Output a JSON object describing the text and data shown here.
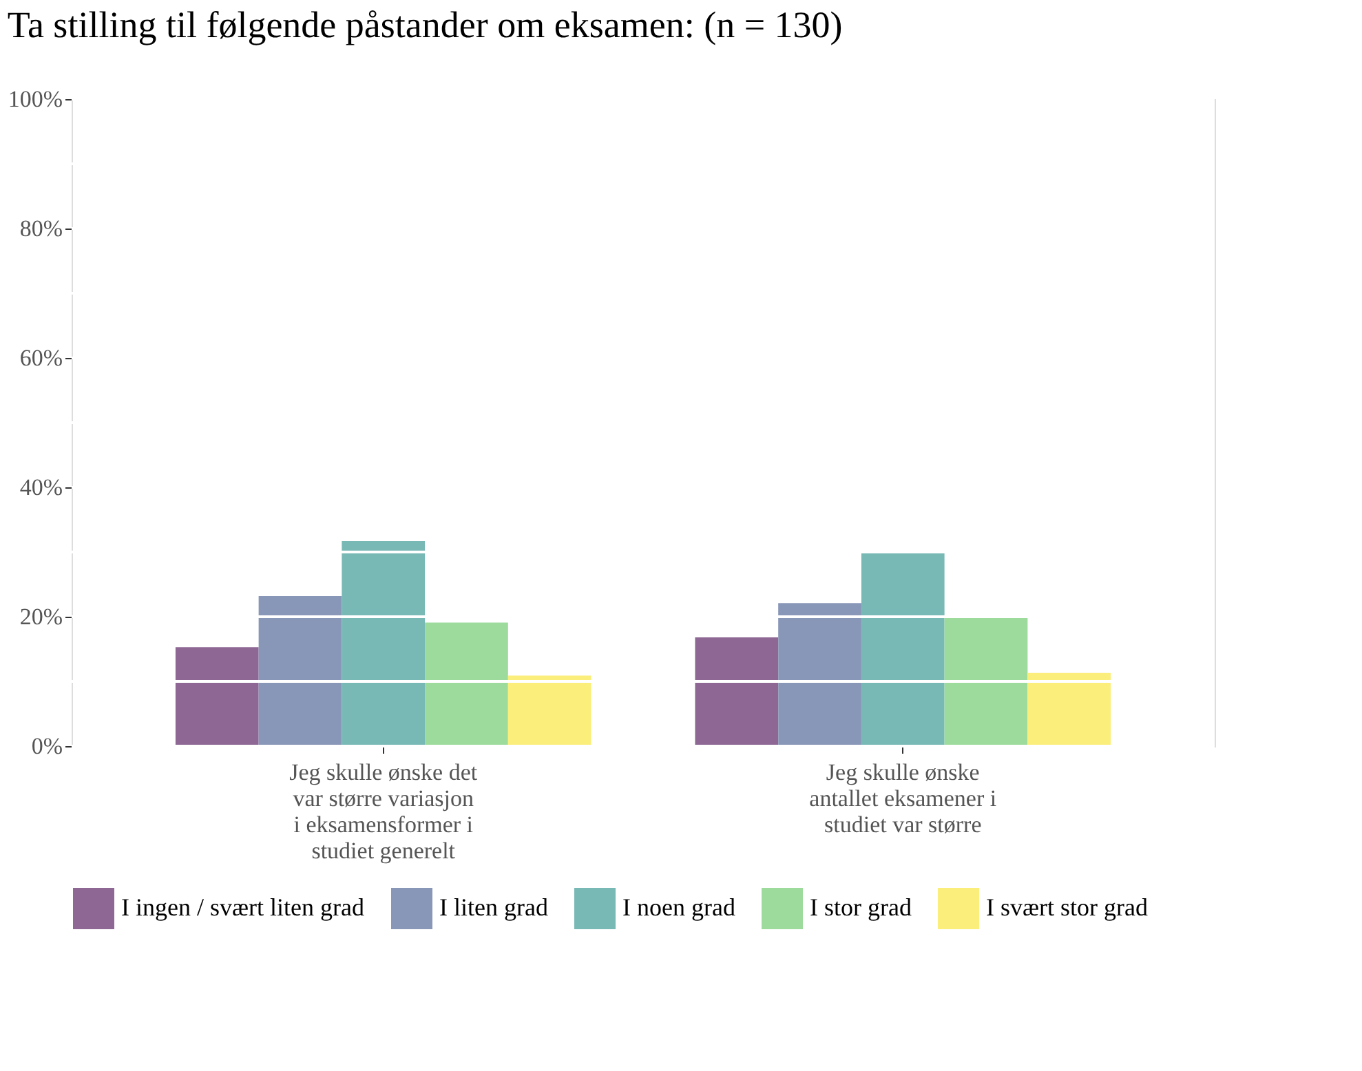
{
  "chart_data": {
    "type": "bar",
    "title": "Ta stilling til følgende påstander om eksamen: (n = 130)",
    "categories": [
      "Jeg skulle ønske det var større variasjon i eksamensformer i studiet generelt",
      "Jeg skulle ønske antallet eksamener i studiet var større"
    ],
    "series": [
      {
        "name": "I ingen / svært liten grad",
        "color": "#8e6795",
        "values": [
          15.3,
          16.8
        ]
      },
      {
        "name": "I liten grad",
        "color": "#8896b7",
        "values": [
          23.2,
          22.1
        ]
      },
      {
        "name": "I noen grad",
        "color": "#78b9b6",
        "values": [
          31.7,
          29.8
        ]
      },
      {
        "name": "I stor grad",
        "color": "#9ddb9d",
        "values": [
          19.1,
          19.8
        ]
      },
      {
        "name": "I svært stor grad",
        "color": "#fbee7b",
        "values": [
          10.9,
          11.3
        ]
      }
    ],
    "ylim": [
      0,
      100
    ],
    "yticks": [
      {
        "value": 0,
        "label": "0%"
      },
      {
        "value": 20,
        "label": "20%"
      },
      {
        "value": 40,
        "label": "40%"
      },
      {
        "value": 60,
        "label": "60%"
      },
      {
        "value": 80,
        "label": "80%"
      },
      {
        "value": 100,
        "label": "100%"
      }
    ],
    "grid": "y",
    "legend": "bottom"
  }
}
